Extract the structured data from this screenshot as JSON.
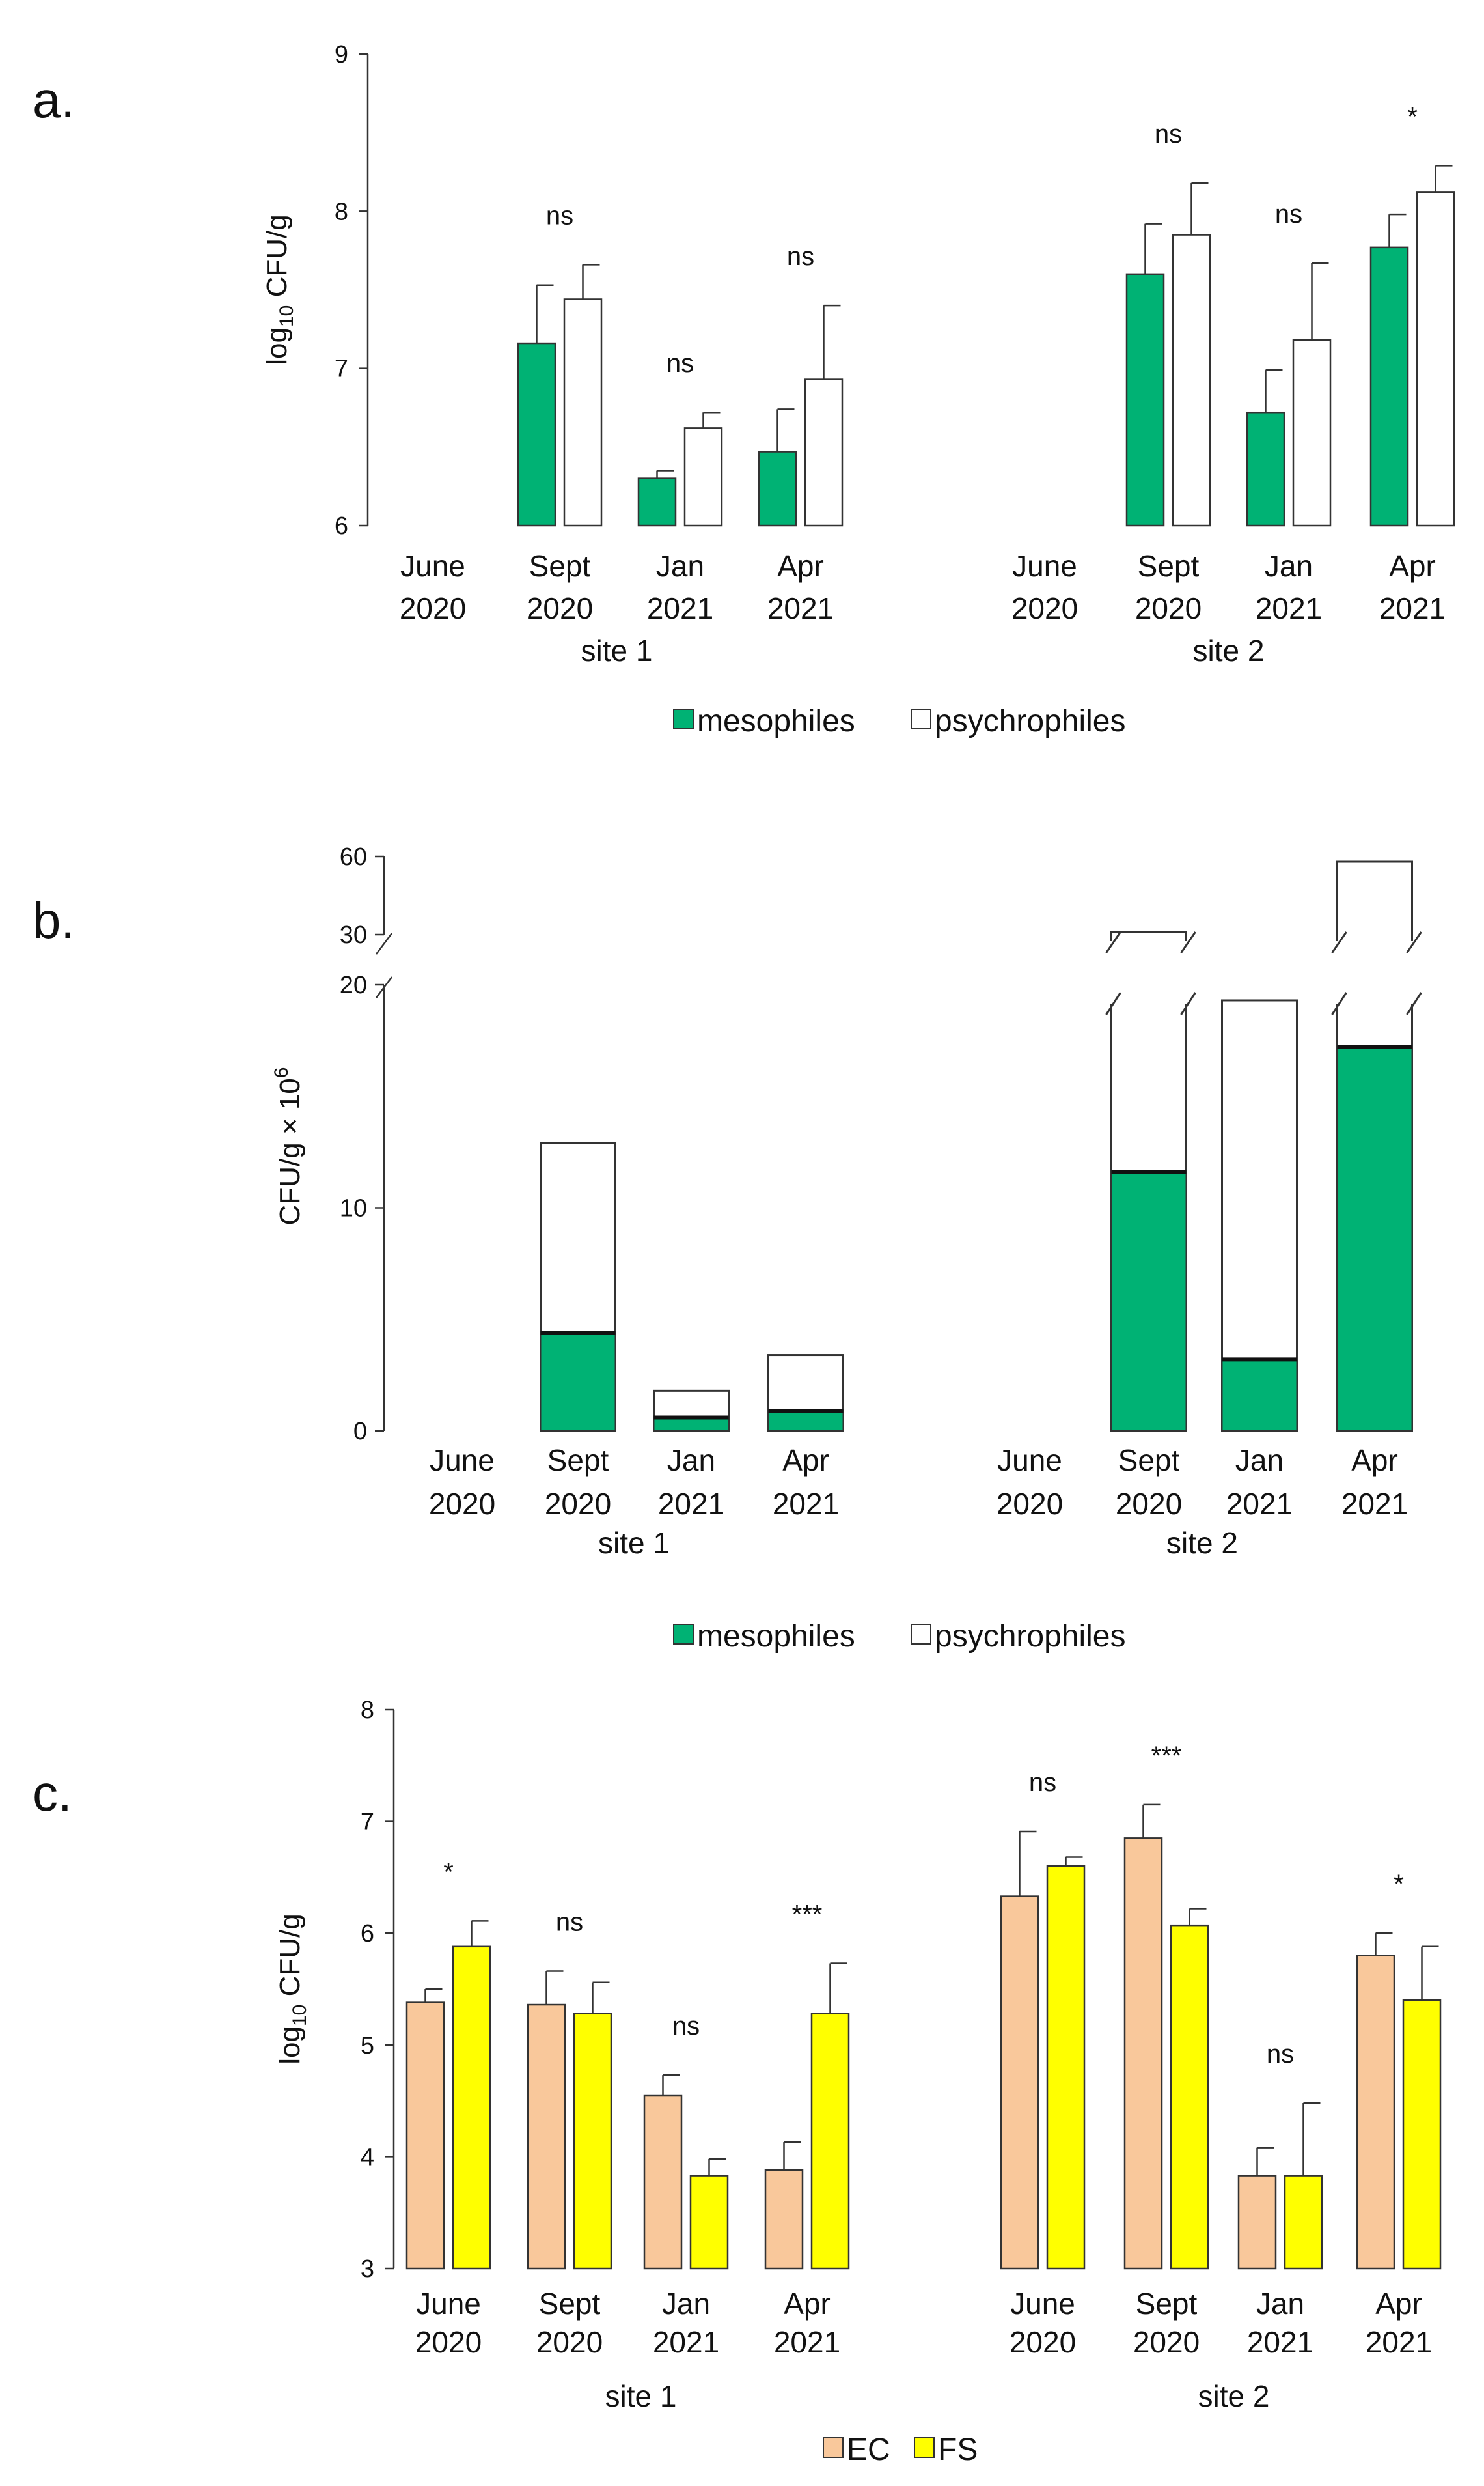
{
  "chart_data": [
    {
      "id": "a",
      "type": "bar",
      "panel_label": "a.",
      "ylabel": "log10 CFU/g",
      "ylabel_main": "log",
      "ylabel_sub": "10",
      "ylabel_rest": " CFU/g",
      "ylim": [
        6,
        9
      ],
      "yticks": [
        "6",
        "7",
        "8",
        "9"
      ],
      "categories": [
        {
          "site": "site 1",
          "month": "June",
          "year": "2020"
        },
        {
          "site": "site 1",
          "month": "Sept",
          "year": "2020"
        },
        {
          "site": "site 1",
          "month": "Jan",
          "year": "2021"
        },
        {
          "site": "site 1",
          "month": "Apr",
          "year": "2021"
        },
        {
          "site": "site 2",
          "month": "June",
          "year": "2020"
        },
        {
          "site": "site 2",
          "month": "Sept",
          "year": "2020"
        },
        {
          "site": "site 2",
          "month": "Jan",
          "year": "2021"
        },
        {
          "site": "site 2",
          "month": "Apr",
          "year": "2021"
        }
      ],
      "site_labels": [
        "site 1",
        "site 2"
      ],
      "series": [
        {
          "name": "mesophiles",
          "color": "#00b274",
          "values": [
            null,
            7.16,
            6.3,
            6.47,
            null,
            7.6,
            6.72,
            7.77
          ],
          "errors": [
            null,
            0.37,
            0.05,
            0.27,
            null,
            0.32,
            0.27,
            0.21
          ]
        },
        {
          "name": "psychrophiles",
          "color": "#ffffff",
          "values": [
            null,
            7.44,
            6.62,
            6.93,
            null,
            7.85,
            7.18,
            8.12
          ],
          "errors": [
            null,
            0.22,
            0.1,
            0.47,
            null,
            0.33,
            0.49,
            0.17
          ]
        }
      ],
      "significance": [
        "",
        "ns",
        "ns",
        "ns",
        "",
        "ns",
        "ns",
        "*"
      ],
      "legend": [
        "mesophiles",
        "psychrophiles"
      ]
    },
    {
      "id": "b",
      "type": "stacked_bar",
      "panel_label": "b.",
      "ylabel": "CFU/g × 10",
      "ylabel_sup": "6",
      "ylim": [
        0,
        60
      ],
      "axis_break": [
        20,
        30
      ],
      "yticks": [
        "0",
        "10",
        "20",
        "30",
        "60"
      ],
      "categories": [
        {
          "site": "site 1",
          "month": "June",
          "year": "2020"
        },
        {
          "site": "site 1",
          "month": "Sept",
          "year": "2020"
        },
        {
          "site": "site 1",
          "month": "Jan",
          "year": "2021"
        },
        {
          "site": "site 1",
          "month": "Apr",
          "year": "2021"
        },
        {
          "site": "site 2",
          "month": "June",
          "year": "2020"
        },
        {
          "site": "site 2",
          "month": "Sept",
          "year": "2020"
        },
        {
          "site": "site 2",
          "month": "Jan",
          "year": "2021"
        },
        {
          "site": "site 2",
          "month": "Apr",
          "year": "2021"
        }
      ],
      "site_labels": [
        "site 1",
        "site 2"
      ],
      "series": [
        {
          "name": "mesophiles",
          "color": "#00b274",
          "values": [
            null,
            4.4,
            0.6,
            0.9,
            null,
            11.6,
            3.2,
            17.2
          ]
        },
        {
          "name": "psychrophiles",
          "color": "#ffffff",
          "totals": [
            null,
            12.9,
            1.8,
            3.4,
            null,
            31,
            19.3,
            58
          ]
        }
      ],
      "legend": [
        "mesophiles",
        "psychrophiles"
      ]
    },
    {
      "id": "c",
      "type": "bar",
      "panel_label": "c.",
      "ylabel": "log10 CFU/g",
      "ylabel_main": "log",
      "ylabel_sub": "10",
      "ylabel_rest": " CFU/g",
      "ylim": [
        3,
        8
      ],
      "yticks": [
        "3",
        "4",
        "5",
        "6",
        "7",
        "8"
      ],
      "categories": [
        {
          "site": "site 1",
          "month": "June",
          "year": "2020"
        },
        {
          "site": "site 1",
          "month": "Sept",
          "year": "2020"
        },
        {
          "site": "site 1",
          "month": "Jan",
          "year": "2021"
        },
        {
          "site": "site 1",
          "month": "Apr",
          "year": "2021"
        },
        {
          "site": "site 2",
          "month": "June",
          "year": "2020"
        },
        {
          "site": "site 2",
          "month": "Sept",
          "year": "2020"
        },
        {
          "site": "site 2",
          "month": "Jan",
          "year": "2021"
        },
        {
          "site": "site 2",
          "month": "Apr",
          "year": "2021"
        }
      ],
      "site_labels": [
        "site 1",
        "site 2"
      ],
      "series": [
        {
          "name": "EC",
          "color": "#f9c89b",
          "values": [
            5.38,
            5.36,
            4.55,
            3.88,
            6.33,
            6.85,
            3.83,
            5.8
          ],
          "errors": [
            0.12,
            0.3,
            0.18,
            0.25,
            0.58,
            0.3,
            0.25,
            0.2
          ]
        },
        {
          "name": "FS",
          "color": "#ffff00",
          "values": [
            5.88,
            5.28,
            3.83,
            5.28,
            6.6,
            6.07,
            3.83,
            5.4
          ],
          "errors": [
            0.23,
            0.28,
            0.15,
            0.45,
            0.08,
            0.15,
            0.65,
            0.48
          ]
        }
      ],
      "significance": [
        "*",
        "ns",
        "ns",
        "***",
        "ns",
        "***",
        "ns",
        "*"
      ],
      "legend": [
        "EC",
        "FS"
      ]
    }
  ]
}
